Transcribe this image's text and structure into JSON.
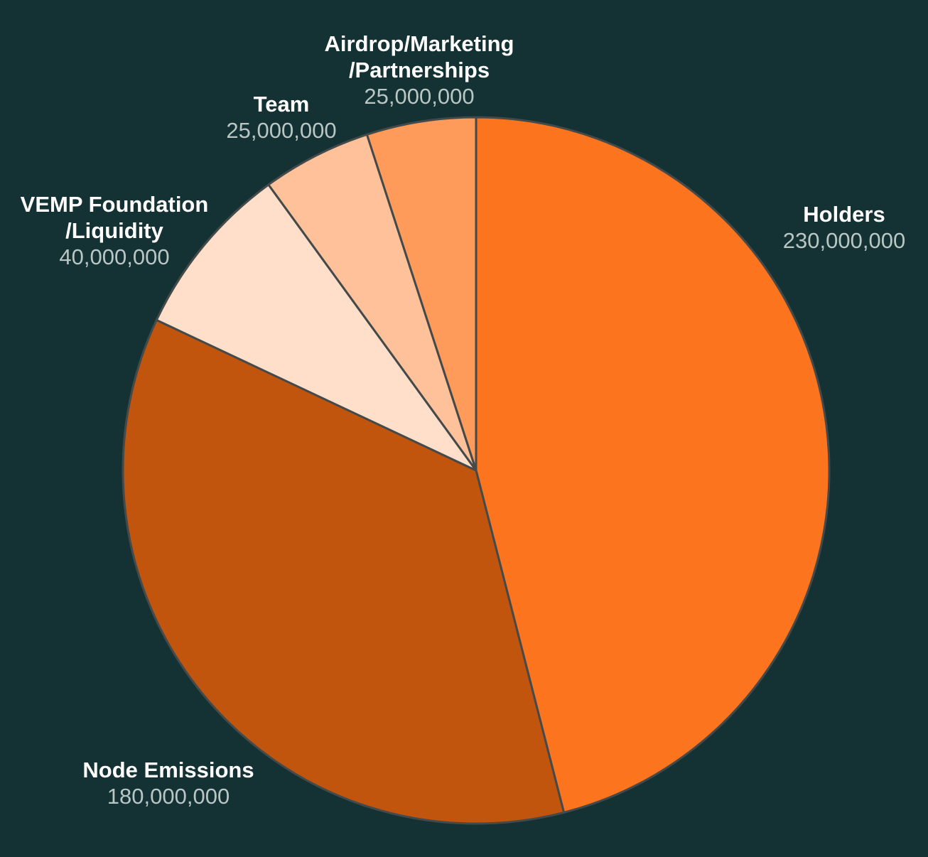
{
  "background": "#143133",
  "chart_data": {
    "type": "pie",
    "slices": [
      {
        "label_lines": [
          "Holders"
        ],
        "value": 230000000,
        "value_text": "230,000,000",
        "color": "#fd741e"
      },
      {
        "label_lines": [
          "Node Emissions"
        ],
        "value": 180000000,
        "value_text": "180,000,000",
        "color": "#c2550e"
      },
      {
        "label_lines": [
          "VEMP Foundation",
          "/Liquidity"
        ],
        "value": 40000000,
        "value_text": "40,000,000",
        "color": "#ffdfca"
      },
      {
        "label_lines": [
          "Team"
        ],
        "value": 25000000,
        "value_text": "25,000,000",
        "color": "#ffc19a"
      },
      {
        "label_lines": [
          "Airdrop/Marketing",
          "/Partnerships"
        ],
        "value": 25000000,
        "value_text": "25,000,000",
        "color": "#fe9b5b"
      }
    ],
    "start_angle": "12 o'clock",
    "direction": "clockwise",
    "legend": "none"
  }
}
